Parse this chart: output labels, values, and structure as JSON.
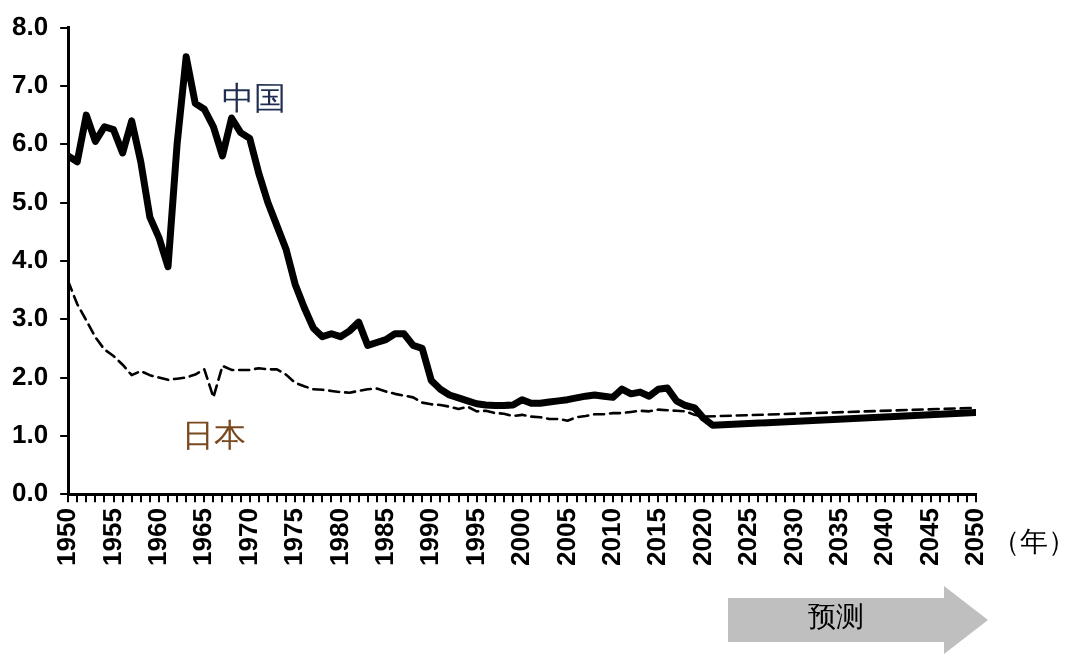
{
  "chart_data": {
    "type": "line",
    "xlabel": "（年）",
    "annotations": [
      "预测"
    ],
    "xlim": [
      1950,
      2050
    ],
    "xticks": [
      1950,
      {
        "value": 1951,
        "label": null
      },
      {
        "value": 1952,
        "label": null
      },
      {
        "value": 1953,
        "label": null
      },
      {
        "value": 1954,
        "label": null
      },
      1955,
      {
        "value": 1956,
        "label": null
      },
      {
        "value": 1957,
        "label": null
      },
      {
        "value": 1958,
        "label": null
      },
      {
        "value": 1959,
        "label": null
      },
      1960,
      {
        "value": 1961,
        "label": null
      },
      {
        "value": 1962,
        "label": null
      },
      {
        "value": 1963,
        "label": null
      },
      {
        "value": 1964,
        "label": null
      },
      1965,
      {
        "value": 1966,
        "label": null
      },
      {
        "value": 1967,
        "label": null
      },
      {
        "value": 1968,
        "label": null
      },
      {
        "value": 1969,
        "label": null
      },
      1970,
      {
        "value": 1971,
        "label": null
      },
      {
        "value": 1972,
        "label": null
      },
      {
        "value": 1973,
        "label": null
      },
      {
        "value": 1974,
        "label": null
      },
      1975,
      {
        "value": 1976,
        "label": null
      },
      {
        "value": 1977,
        "label": null
      },
      {
        "value": 1978,
        "label": null
      },
      {
        "value": 1979,
        "label": null
      },
      1980,
      {
        "value": 1981,
        "label": null
      },
      {
        "value": 1982,
        "label": null
      },
      {
        "value": 1983,
        "label": null
      },
      {
        "value": 1984,
        "label": null
      },
      1985,
      {
        "value": 1986,
        "label": null
      },
      {
        "value": 1987,
        "label": null
      },
      {
        "value": 1988,
        "label": null
      },
      {
        "value": 1989,
        "label": null
      },
      1990,
      {
        "value": 1991,
        "label": null
      },
      {
        "value": 1992,
        "label": null
      },
      {
        "value": 1993,
        "label": null
      },
      {
        "value": 1994,
        "label": null
      },
      1995,
      {
        "value": 1996,
        "label": null
      },
      {
        "value": 1997,
        "label": null
      },
      {
        "value": 1998,
        "label": null
      },
      {
        "value": 1999,
        "label": null
      },
      2000,
      {
        "value": 2001,
        "label": null
      },
      {
        "value": 2002,
        "label": null
      },
      {
        "value": 2003,
        "label": null
      },
      {
        "value": 2004,
        "label": null
      },
      2005,
      {
        "value": 2006,
        "label": null
      },
      {
        "value": 2007,
        "label": null
      },
      {
        "value": 2008,
        "label": null
      },
      {
        "value": 2009,
        "label": null
      },
      2010,
      {
        "value": 2011,
        "label": null
      },
      {
        "value": 2012,
        "label": null
      },
      {
        "value": 2013,
        "label": null
      },
      {
        "value": 2014,
        "label": null
      },
      2015,
      {
        "value": 2016,
        "label": null
      },
      {
        "value": 2017,
        "label": null
      },
      {
        "value": 2018,
        "label": null
      },
      {
        "value": 2019,
        "label": null
      },
      2020,
      {
        "value": 2021,
        "label": null
      },
      {
        "value": 2022,
        "label": null
      },
      {
        "value": 2023,
        "label": null
      },
      {
        "value": 2024,
        "label": null
      },
      2025,
      {
        "value": 2026,
        "label": null
      },
      {
        "value": 2027,
        "label": null
      },
      {
        "value": 2028,
        "label": null
      },
      {
        "value": 2029,
        "label": null
      },
      2030,
      {
        "value": 2031,
        "label": null
      },
      {
        "value": 2032,
        "label": null
      },
      {
        "value": 2033,
        "label": null
      },
      {
        "value": 2034,
        "label": null
      },
      2035,
      {
        "value": 2036,
        "label": null
      },
      {
        "value": 2037,
        "label": null
      },
      {
        "value": 2038,
        "label": null
      },
      {
        "value": 2039,
        "label": null
      },
      2040,
      {
        "value": 2041,
        "label": null
      },
      {
        "value": 2042,
        "label": null
      },
      {
        "value": 2043,
        "label": null
      },
      {
        "value": 2044,
        "label": null
      },
      2045,
      {
        "value": 2046,
        "label": null
      },
      {
        "value": 2047,
        "label": null
      },
      {
        "value": 2048,
        "label": null
      },
      {
        "value": 2049,
        "label": null
      },
      2050
    ],
    "ylim": [
      0,
      8
    ],
    "yticks": [
      {
        "value": 0,
        "label": "0.0"
      },
      {
        "value": 1,
        "label": "1.0"
      },
      {
        "value": 2,
        "label": "2.0"
      },
      {
        "value": 3,
        "label": "3.0"
      },
      {
        "value": 4,
        "label": "4.0"
      },
      {
        "value": 5,
        "label": "5.0"
      },
      {
        "value": 6,
        "label": "6.0"
      },
      {
        "value": 7,
        "label": "7.0"
      },
      {
        "value": 8,
        "label": "8.0"
      }
    ],
    "grid": false,
    "legend": false,
    "marker": "none",
    "series": [
      {
        "name": "中国",
        "color": "#000000",
        "line_style": "solid",
        "x": [
          1950,
          1951,
          1952,
          1953,
          1954,
          1955,
          1956,
          1957,
          1958,
          1959,
          1960,
          1961,
          1962,
          1963,
          1964,
          1965,
          1966,
          1967,
          1968,
          1969,
          1970,
          1971,
          1972,
          1973,
          1974,
          1975,
          1976,
          1977,
          1978,
          1979,
          1980,
          1981,
          1982,
          1983,
          1984,
          1985,
          1986,
          1987,
          1988,
          1989,
          1990,
          1991,
          1992,
          1993,
          1994,
          1995,
          1996,
          1997,
          1998,
          1999,
          2000,
          2001,
          2002,
          2003,
          2004,
          2005,
          2006,
          2007,
          2008,
          2009,
          2010,
          2011,
          2012,
          2013,
          2014,
          2015,
          2016,
          2017,
          2018,
          2019,
          2020,
          2021,
          2050
        ],
        "values": [
          5.8,
          5.7,
          6.5,
          6.05,
          6.3,
          6.25,
          5.85,
          6.4,
          5.7,
          4.75,
          4.4,
          3.9,
          6.0,
          7.5,
          6.7,
          6.6,
          6.3,
          5.8,
          6.45,
          6.2,
          6.1,
          5.5,
          5.0,
          4.6,
          4.2,
          3.6,
          3.2,
          2.85,
          2.7,
          2.75,
          2.7,
          2.8,
          2.95,
          2.55,
          2.6,
          2.65,
          2.75,
          2.75,
          2.55,
          2.5,
          1.95,
          1.8,
          1.7,
          1.65,
          1.6,
          1.55,
          1.53,
          1.52,
          1.52,
          1.53,
          1.62,
          1.56,
          1.56,
          1.58,
          1.6,
          1.62,
          1.65,
          1.68,
          1.7,
          1.68,
          1.66,
          1.8,
          1.72,
          1.75,
          1.68,
          1.8,
          1.82,
          1.6,
          1.52,
          1.48,
          1.3,
          1.18,
          1.4
        ]
      },
      {
        "name": "日本",
        "color": "#000000",
        "line_style": "dashed",
        "x": [
          1950,
          1951,
          1952,
          1953,
          1954,
          1955,
          1956,
          1957,
          1958,
          1959,
          1960,
          1961,
          1962,
          1963,
          1964,
          1965,
          1966,
          1967,
          1968,
          1969,
          1970,
          1971,
          1972,
          1973,
          1974,
          1975,
          1976,
          1977,
          1978,
          1979,
          1980,
          1981,
          1982,
          1983,
          1984,
          1985,
          1986,
          1987,
          1988,
          1989,
          1990,
          1991,
          1992,
          1993,
          1994,
          1995,
          1996,
          1997,
          1998,
          1999,
          2000,
          2001,
          2002,
          2003,
          2004,
          2005,
          2006,
          2007,
          2008,
          2009,
          2010,
          2011,
          2012,
          2013,
          2014,
          2015,
          2016,
          2017,
          2018,
          2019,
          2020,
          2050
        ],
        "values": [
          3.65,
          3.26,
          2.98,
          2.69,
          2.48,
          2.37,
          2.22,
          2.04,
          2.11,
          2.04,
          2.0,
          1.96,
          1.98,
          2.0,
          2.05,
          2.14,
          1.66,
          2.2,
          2.13,
          2.13,
          2.13,
          2.16,
          2.14,
          2.14,
          2.05,
          1.91,
          1.85,
          1.8,
          1.79,
          1.77,
          1.75,
          1.74,
          1.77,
          1.8,
          1.81,
          1.76,
          1.72,
          1.69,
          1.66,
          1.57,
          1.54,
          1.53,
          1.5,
          1.46,
          1.5,
          1.42,
          1.43,
          1.39,
          1.38,
          1.34,
          1.36,
          1.33,
          1.32,
          1.29,
          1.29,
          1.26,
          1.32,
          1.34,
          1.37,
          1.37,
          1.39,
          1.39,
          1.41,
          1.43,
          1.42,
          1.45,
          1.44,
          1.43,
          1.42,
          1.36,
          1.33,
          1.48
        ]
      }
    ]
  }
}
